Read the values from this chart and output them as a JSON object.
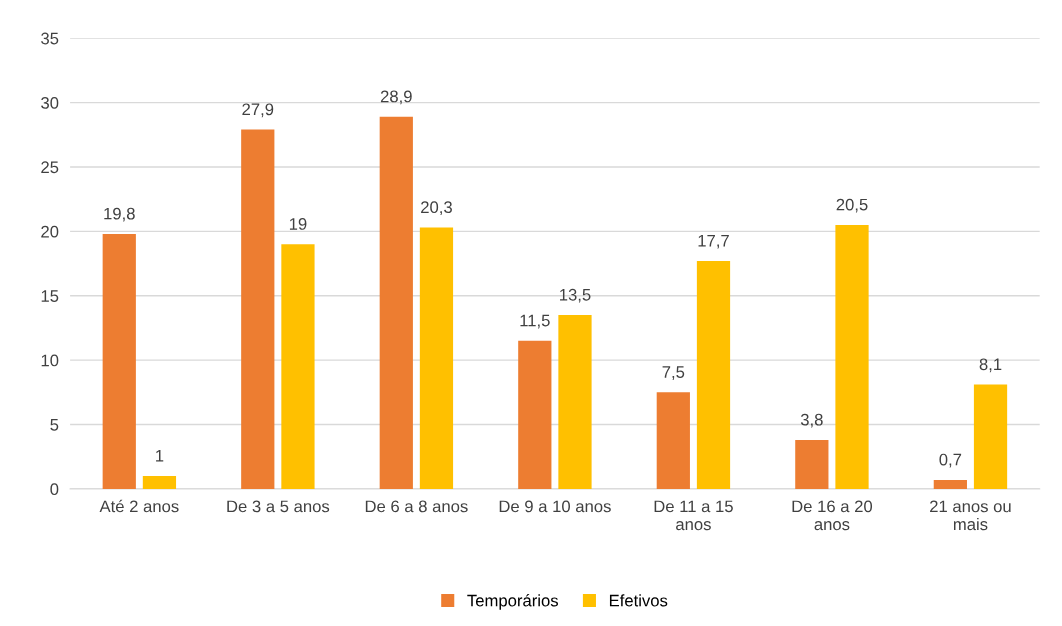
{
  "chart_data": {
    "type": "bar",
    "categories": [
      "Até 2 anos",
      "De 3 a 5 anos",
      "De 6 a 8 anos",
      "De 9 a 10 anos",
      "De 11 a 15\nanos",
      "De 16 a 20\nanos",
      "21 anos ou\nmais"
    ],
    "series": [
      {
        "name": "Temporários",
        "color": "#ed7d31",
        "values": [
          19.8,
          27.9,
          28.9,
          11.5,
          7.5,
          3.8,
          0.7
        ],
        "value_labels": [
          "19,8",
          "27,9",
          "28,9",
          "11,5",
          "7,5",
          "3,8",
          "0,7"
        ]
      },
      {
        "name": "Efetivos",
        "color": "#ffc000",
        "values": [
          1,
          19,
          20.3,
          13.5,
          17.7,
          20.5,
          8.1
        ],
        "value_labels": [
          "1",
          "19",
          "20,3",
          "13,5",
          "17,7",
          "20,5",
          "8,1"
        ]
      }
    ],
    "ylim": [
      0,
      35
    ],
    "yticks": [
      0,
      5,
      10,
      15,
      20,
      25,
      30,
      35
    ],
    "grid": "y",
    "legend": "bottom"
  }
}
